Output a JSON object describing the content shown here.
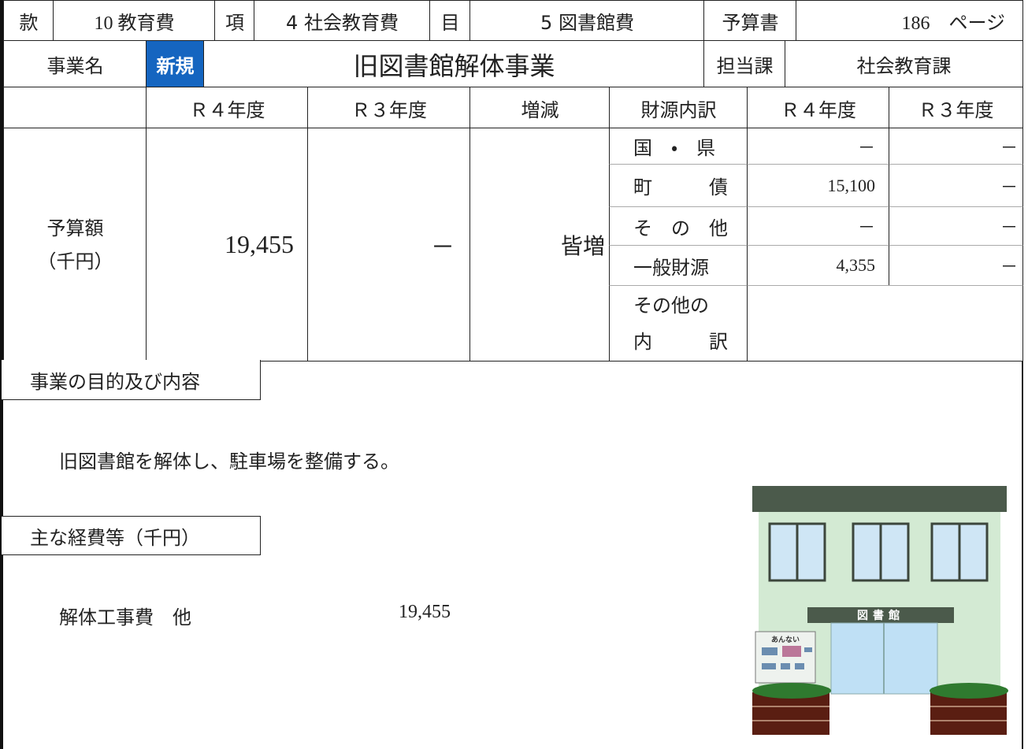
{
  "header": {
    "kan_label": "款",
    "kan": "10 教育費",
    "kou_label": "項",
    "kou": "4 社会教育費",
    "moku_label": "目",
    "moku": "5 図書館費",
    "yosansho_label": "予算書",
    "page": "186　ページ"
  },
  "project": {
    "label": "事業名",
    "badge": "新規",
    "name": "旧図書館解体事業",
    "dept_label": "担当課",
    "dept": "社会教育課"
  },
  "budget": {
    "label_top": "予算額",
    "label_bottom": "（千円）",
    "col_headers": [
      "Ｒ４年度",
      "Ｒ３年度",
      "増減"
    ],
    "r4": "19,455",
    "r3": "－",
    "change": "皆増"
  },
  "funding": {
    "header": "財源内訳",
    "col_headers": [
      "Ｒ４年度",
      "Ｒ３年度"
    ],
    "rows": [
      [
        "国　・　県",
        "－",
        "－"
      ],
      [
        "町　　　債",
        "15,100",
        "－"
      ],
      [
        "そ　の　他",
        "－",
        "－"
      ],
      [
        "一般財源",
        "4,355",
        "－"
      ]
    ],
    "other_breakdown": [
      "その他の",
      "内　　　訳"
    ]
  },
  "purpose": {
    "heading": "事業の目的及び内容",
    "text": "旧図書館を解体し、駐車場を整備する。"
  },
  "costs": {
    "heading": "主な経費等（千円）",
    "items": [
      {
        "name": "解体工事費　他",
        "amount": "19,455"
      }
    ]
  },
  "illustration": {
    "sign": "図書館",
    "board": "あんない"
  }
}
